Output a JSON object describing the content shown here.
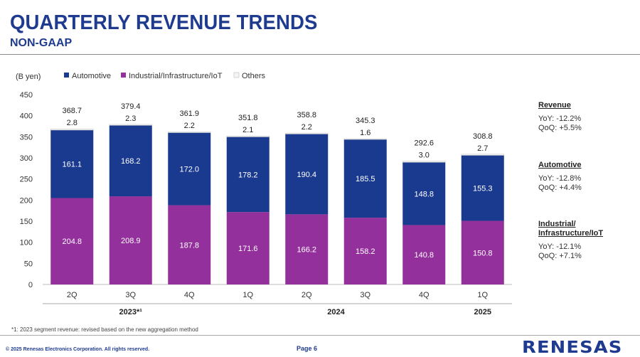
{
  "header": {
    "title": "QUARTERLY REVENUE TRENDS",
    "subtitle": "NON-GAAP"
  },
  "colors": {
    "automotive": "#1a3a8f",
    "industrial": "#93309c",
    "others": "#f4f4f4",
    "brand": "#1f3b8f"
  },
  "chart_data": {
    "type": "bar",
    "stacked": true,
    "unit_label": "(B yen)",
    "ylim": [
      0,
      450
    ],
    "yticks": [
      0,
      50,
      100,
      150,
      200,
      250,
      300,
      350,
      400,
      450
    ],
    "grid": false,
    "legend_position": "top-left",
    "categories": [
      "2Q",
      "3Q",
      "4Q",
      "1Q",
      "2Q",
      "3Q",
      "4Q",
      "1Q"
    ],
    "groups": [
      {
        "label": "2023*¹",
        "from": 0,
        "to": 2
      },
      {
        "label": "2024",
        "from": 3,
        "to": 6
      },
      {
        "label": "2025",
        "from": 7,
        "to": 7
      }
    ],
    "series": [
      {
        "name": "Industrial/Infrastructure/IoT",
        "values": [
          204.8,
          208.9,
          187.8,
          171.6,
          166.2,
          158.2,
          140.8,
          150.8
        ]
      },
      {
        "name": "Automotive",
        "values": [
          161.1,
          168.2,
          172.0,
          178.2,
          190.4,
          185.5,
          148.8,
          155.3
        ]
      },
      {
        "name": "Others",
        "values": [
          2.8,
          2.3,
          2.2,
          2.1,
          2.2,
          1.6,
          3.0,
          2.7
        ]
      }
    ],
    "legend_order": [
      "Automotive",
      "Industrial/Infrastructure/IoT",
      "Others"
    ],
    "totals": [
      368.7,
      379.4,
      361.9,
      351.8,
      358.8,
      345.3,
      292.6,
      308.8
    ]
  },
  "sidebar": {
    "revenue": {
      "title": "Revenue",
      "yoy": "YoY: -12.2%",
      "qoq": "QoQ: +5.5%"
    },
    "automotive": {
      "title": "Automotive",
      "yoy": "YoY: -12.8%",
      "qoq": "QoQ: +4.4%"
    },
    "industrial": {
      "title_line1": "Industrial/",
      "title_line2": "Infrastructure/IoT",
      "yoy": "YoY:  -12.1%",
      "qoq": "QoQ: +7.1%"
    }
  },
  "footer": {
    "footnote": "*1: 2023 segment revenue: revised based on the new aggregation method",
    "copyright": "© 2025 Renesas Electronics Corporation. All rights reserved.",
    "page": "Page 6",
    "logo": "RENESAS"
  }
}
